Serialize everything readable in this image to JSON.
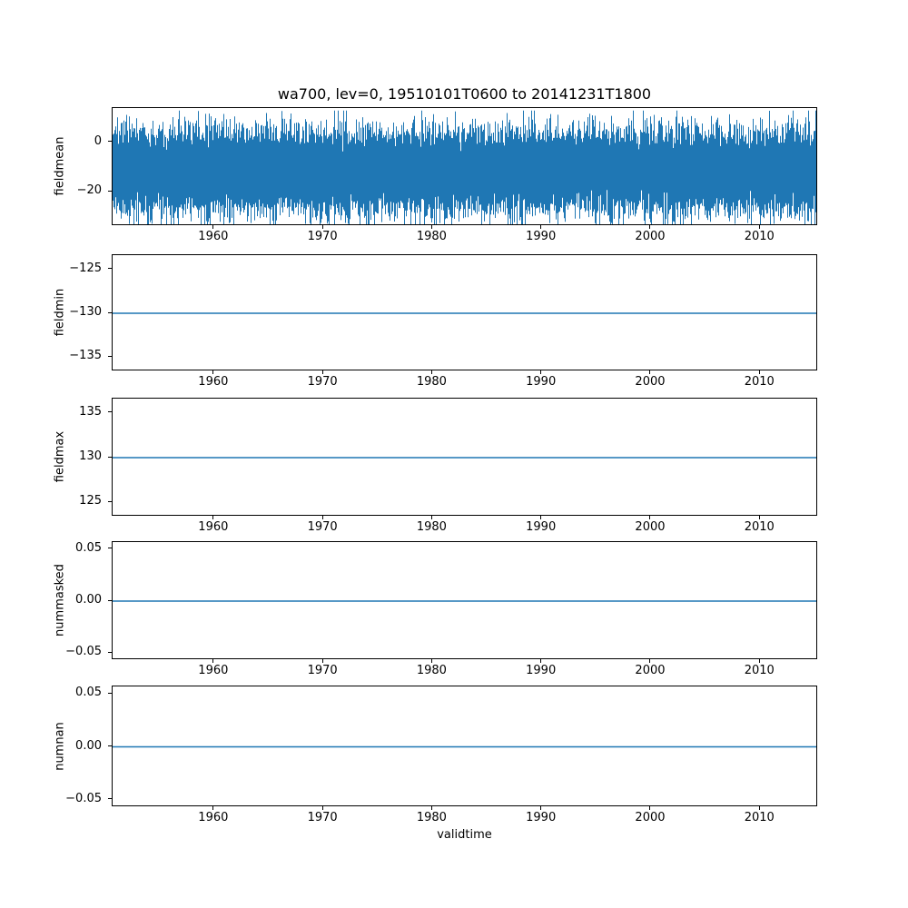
{
  "title": "wa700, lev=0, 19510101T0600 to 20141231T1800",
  "xlabel": "validtime",
  "accent_color": "#1f77b4",
  "xlim": [
    1950.7,
    2015.3
  ],
  "x_ticks": [
    {
      "value": 1960,
      "label": "1960"
    },
    {
      "value": 1970,
      "label": "1970"
    },
    {
      "value": 1980,
      "label": "1980"
    },
    {
      "value": 1990,
      "label": "1990"
    },
    {
      "value": 2000,
      "label": "2000"
    },
    {
      "value": 2010,
      "label": "2010"
    }
  ],
  "chart_data": [
    {
      "type": "line",
      "name": "fieldmean",
      "ylabel": "fieldmean",
      "series": "noise",
      "noise_summary": {
        "mean": -11.5,
        "sd": 7.5,
        "min": -34,
        "max": 13,
        "samples_per_column": 40,
        "seed": 12345
      },
      "yticks": [
        {
          "value": 0,
          "label": "0"
        },
        {
          "value": -20,
          "label": "−20"
        }
      ],
      "ylim": [
        -34,
        14
      ]
    },
    {
      "type": "line",
      "name": "fieldmin",
      "ylabel": "fieldmin",
      "series": "constant",
      "constant_value": -130,
      "yticks": [
        {
          "value": -125,
          "label": "−125"
        },
        {
          "value": -130,
          "label": "−130"
        },
        {
          "value": -135,
          "label": "−135"
        }
      ],
      "ylim": [
        -136.6,
        -123.4
      ]
    },
    {
      "type": "line",
      "name": "fieldmax",
      "ylabel": "fieldmax",
      "series": "constant",
      "constant_value": 130,
      "yticks": [
        {
          "value": 135,
          "label": "135"
        },
        {
          "value": 130,
          "label": "130"
        },
        {
          "value": 125,
          "label": "125"
        }
      ],
      "ylim": [
        123.4,
        136.6
      ]
    },
    {
      "type": "line",
      "name": "nummasked",
      "ylabel": "nummasked",
      "series": "constant",
      "constant_value": 0,
      "yticks": [
        {
          "value": 0.05,
          "label": "0.05"
        },
        {
          "value": 0,
          "label": "0.00"
        },
        {
          "value": -0.05,
          "label": "−0.05"
        }
      ],
      "ylim": [
        -0.057,
        0.057
      ]
    },
    {
      "type": "line",
      "name": "numnan",
      "ylabel": "numnan",
      "series": "constant",
      "constant_value": 0,
      "yticks": [
        {
          "value": 0.05,
          "label": "0.05"
        },
        {
          "value": 0,
          "label": "0.00"
        },
        {
          "value": -0.05,
          "label": "−0.05"
        }
      ],
      "ylim": [
        -0.057,
        0.057
      ]
    }
  ]
}
